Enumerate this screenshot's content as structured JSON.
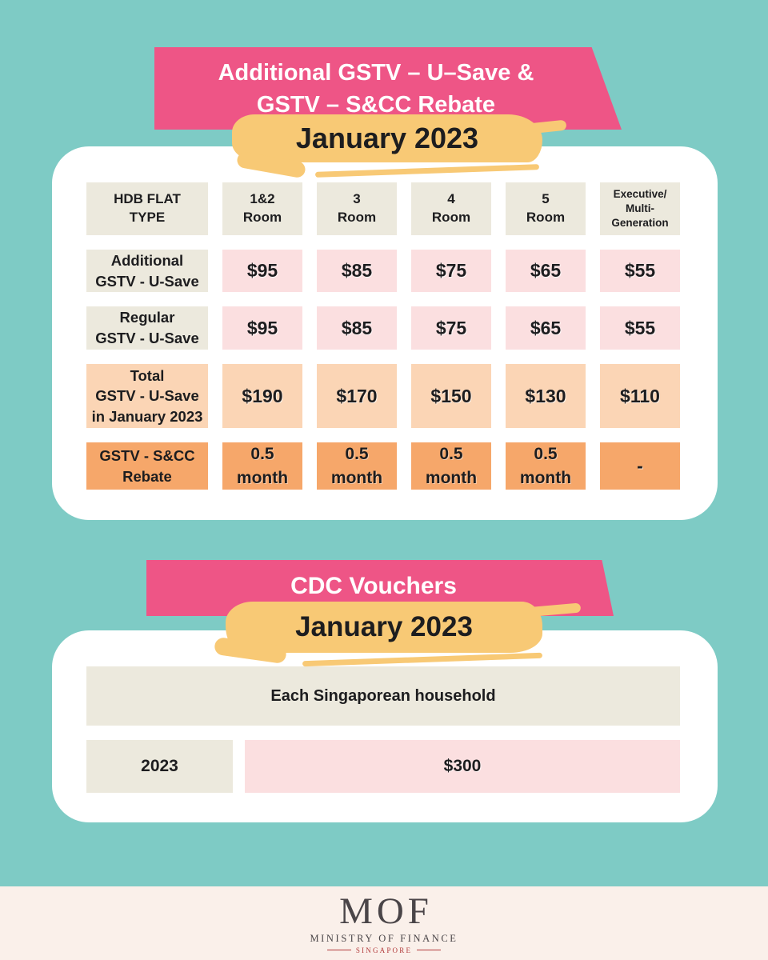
{
  "palette": {
    "background_teal": "#7ECBC5",
    "banner_pink": "#EE5586",
    "highlight_yellow": "#F8C975",
    "card_white": "#FFFFFF",
    "cell_beige": "#ECE9DD",
    "cell_light_pink": "#FBDFE0",
    "cell_peach": "#FBD5B5",
    "cell_orange": "#F6A76A",
    "footer_cream": "#FAF0EA",
    "text_dark": "#1D1D1F",
    "mof_gray": "#4A4548",
    "mof_red": "#B23B3C"
  },
  "section1": {
    "banner_title_line1": "Additional GSTV – U–Save &",
    "banner_title_line2": "GSTV – S&CC Rebate",
    "date_label": "January 2023",
    "table": {
      "columns": [
        "HDB FLAT\nTYPE",
        "1&2\nRoom",
        "3\nRoom",
        "4\nRoom",
        "5\nRoom",
        "Executive/\nMulti-\nGeneration"
      ],
      "rows": [
        {
          "label": "Additional\nGSTV - U-Save",
          "values": [
            "$95",
            "$85",
            "$75",
            "$65",
            "$55"
          ]
        },
        {
          "label": "Regular\nGSTV - U-Save",
          "values": [
            "$95",
            "$85",
            "$75",
            "$65",
            "$55"
          ]
        },
        {
          "label": "Total\nGSTV - U-Save\nin January 2023",
          "values": [
            "$190",
            "$170",
            "$150",
            "$130",
            "$110"
          ]
        },
        {
          "label": "GSTV - S&CC\nRebate",
          "values": [
            "0.5\nmonth",
            "0.5\nmonth",
            "0.5\nmonth",
            "0.5\nmonth",
            "-"
          ]
        }
      ]
    }
  },
  "section2": {
    "banner_title": "CDC Vouchers",
    "date_label": "January 2023",
    "table": {
      "header": "Each Singaporean household",
      "year": "2023",
      "amount": "$300"
    }
  },
  "footer": {
    "logo_acronym": "MOF",
    "logo_name": "MINISTRY OF FINANCE",
    "logo_country": "SINGAPORE"
  }
}
